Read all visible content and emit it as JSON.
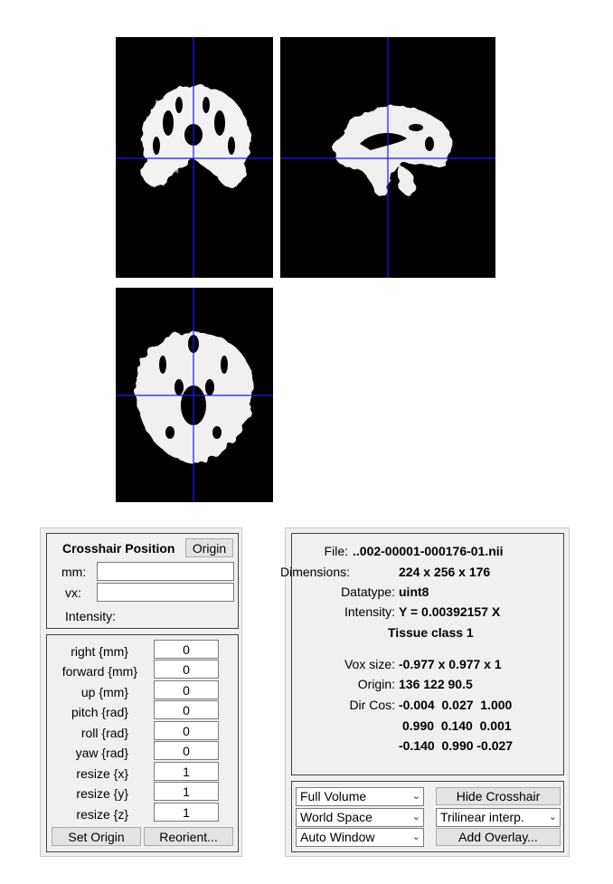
{
  "crosshair_panel": {
    "title": "Crosshair Position",
    "origin_button": "Origin",
    "mm_label": "mm:",
    "mm_value": "",
    "vx_label": "vx:",
    "vx_value": "",
    "intensity_label": "Intensity:"
  },
  "reorient_panel": {
    "fields": [
      {
        "label": "right  {mm}",
        "value": "0"
      },
      {
        "label": "forward  {mm}",
        "value": "0"
      },
      {
        "label": "up  {mm}",
        "value": "0"
      },
      {
        "label": "pitch  {rad}",
        "value": "0"
      },
      {
        "label": "roll  {rad}",
        "value": "0"
      },
      {
        "label": "yaw  {rad}",
        "value": "0"
      },
      {
        "label": "resize  {x}",
        "value": "1"
      },
      {
        "label": "resize  {y}",
        "value": "1"
      },
      {
        "label": "resize  {z}",
        "value": "1"
      }
    ],
    "set_origin_button": "Set Origin",
    "reorient_button": "Reorient..."
  },
  "info_panel": {
    "file_label": "File:",
    "file_value": "..002-00001-000176-01.nii",
    "dimensions_label": "Dimensions:",
    "dimensions_value": "224 x 256 x 176",
    "datatype_label": "Datatype:",
    "datatype_value": "uint8",
    "intensity_label": "Intensity:",
    "intensity_value": "Y = 0.00392157 X",
    "tissue_class": "Tissue class 1",
    "voxsize_label": "Vox size:",
    "voxsize_value": "-0.977 x 0.977 x 1",
    "origin_label": "Origin:",
    "origin_value": "136 122 90.5",
    "dircos_label": "Dir Cos:",
    "dircos_rows": [
      "-0.004  0.027  1.000",
      "0.990  0.140  0.001",
      "-0.140  0.990 -0.027"
    ]
  },
  "controls": {
    "volume_select": "Full Volume",
    "space_select": "World Space",
    "window_select": "Auto Window",
    "hide_crosshair_button": "Hide Crosshair",
    "interp_select": "Trilinear interp.",
    "add_overlay_button": "Add Overlay..."
  },
  "colors": {
    "crosshair": "#1a1aff",
    "viewer_background": "#000000",
    "panel_background": "#f0f0f0"
  }
}
